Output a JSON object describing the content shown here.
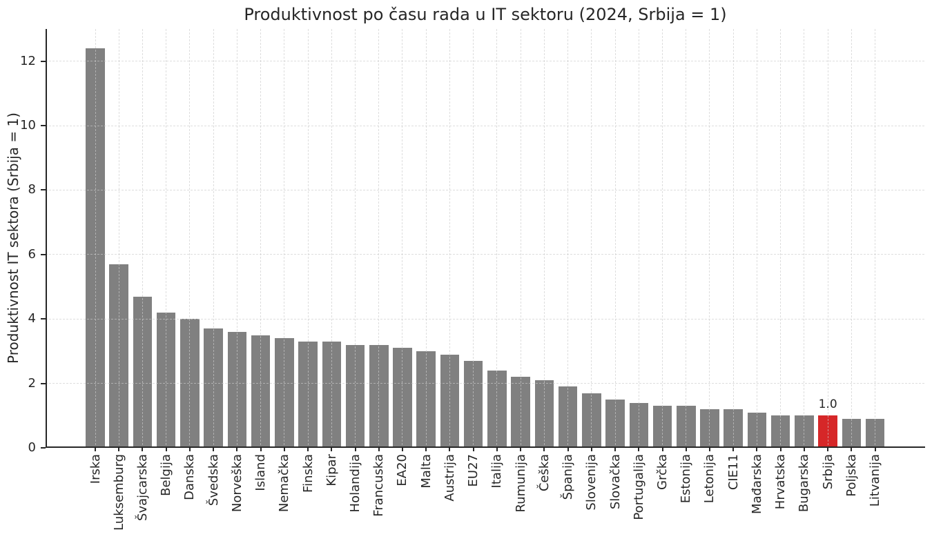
{
  "figure": {
    "background": "#ffffff",
    "text_color": "#262626"
  },
  "chart_data": {
    "type": "bar",
    "title": "Produktivnost po času rada u IT sektoru (2024, Srbija = 1)",
    "ylabel": "Produktivnost IT sektora (Srbija = 1)",
    "xlabel": "",
    "categories": [
      "Irska",
      "Luksemburg",
      "Švajcarska",
      "Belgija",
      "Danska",
      "Švedska",
      "Norveška",
      "Island",
      "Nemačka",
      "Finska",
      "Kipar",
      "Holandija",
      "Francuska",
      "EA20",
      "Malta",
      "Austrija",
      "EU27",
      "Italija",
      "Rumunija",
      "Češka",
      "Španija",
      "Slovenija",
      "Slovačka",
      "Portugalija",
      "Grčka",
      "Estonija",
      "Letonija",
      "CIE11",
      "Mađarska",
      "Hrvatska",
      "Bugarska",
      "Srbija",
      "Poljska",
      "Litvanija"
    ],
    "values": [
      12.4,
      5.7,
      4.7,
      4.2,
      4.0,
      3.7,
      3.6,
      3.5,
      3.4,
      3.3,
      3.3,
      3.2,
      3.2,
      3.1,
      3.0,
      2.9,
      2.7,
      2.4,
      2.2,
      2.1,
      1.9,
      1.7,
      1.5,
      1.4,
      1.3,
      1.3,
      1.2,
      1.2,
      1.1,
      1.0,
      1.0,
      1.0,
      0.9,
      0.9
    ],
    "bar_color": "#808080",
    "highlight": {
      "category": "Srbija",
      "index": 31,
      "color": "#d62728",
      "annotation": "1.0"
    },
    "yticks": [
      0,
      2,
      4,
      6,
      8,
      10,
      12
    ],
    "ylim": [
      0,
      13
    ],
    "grid": true,
    "grid_line_style": "dashed",
    "grid_color": "#dcdcdc",
    "legend_position": "none"
  }
}
